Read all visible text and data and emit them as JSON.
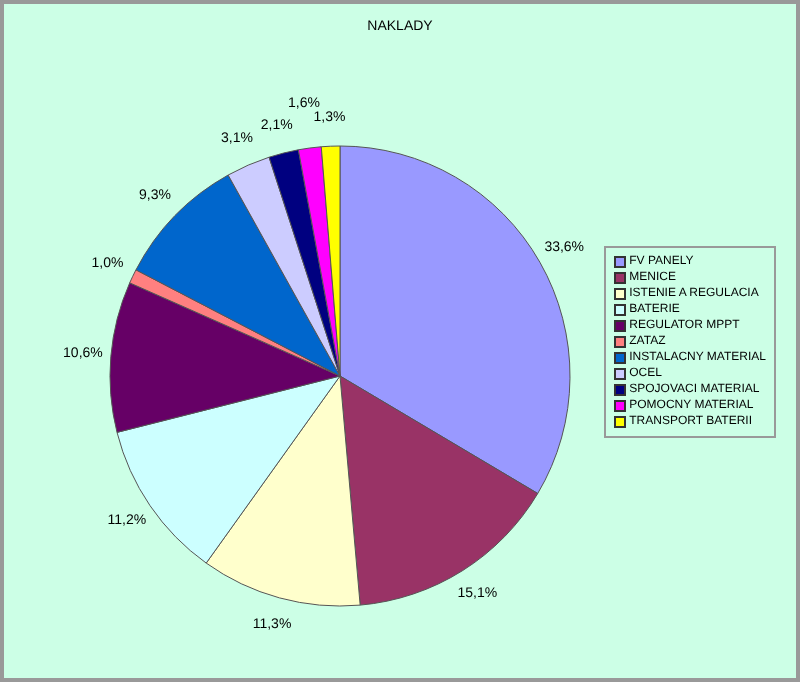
{
  "chart_data": {
    "type": "pie",
    "title": "NAKLADY",
    "categories": [
      "FV PANELY",
      "MENICE",
      "ISTENIE A REGULACIA",
      "BATERIE",
      "REGULATOR MPPT",
      "ZATAZ",
      "INSTALACNY MATERIAL",
      "OCEL",
      "SPOJOVACI MATERIAL",
      "POMOCNY MATERIAL",
      "TRANSPORT BATERII"
    ],
    "values": [
      33.6,
      15.1,
      11.3,
      11.2,
      10.6,
      1.0,
      9.3,
      3.1,
      2.1,
      1.6,
      1.3
    ],
    "value_labels": [
      "33,6%",
      "15,1%",
      "11,3%",
      "11,2%",
      "10,6%",
      "1,0%",
      "9,3%",
      "3,1%",
      "2,1%",
      "1,6%",
      "1,3%"
    ],
    "colors": [
      "#9999ff",
      "#993366",
      "#ffffcc",
      "#ccffff",
      "#660066",
      "#ff8080",
      "#0066cc",
      "#ccccff",
      "#000080",
      "#ff00ff",
      "#ffff00"
    ],
    "legend": "right"
  }
}
